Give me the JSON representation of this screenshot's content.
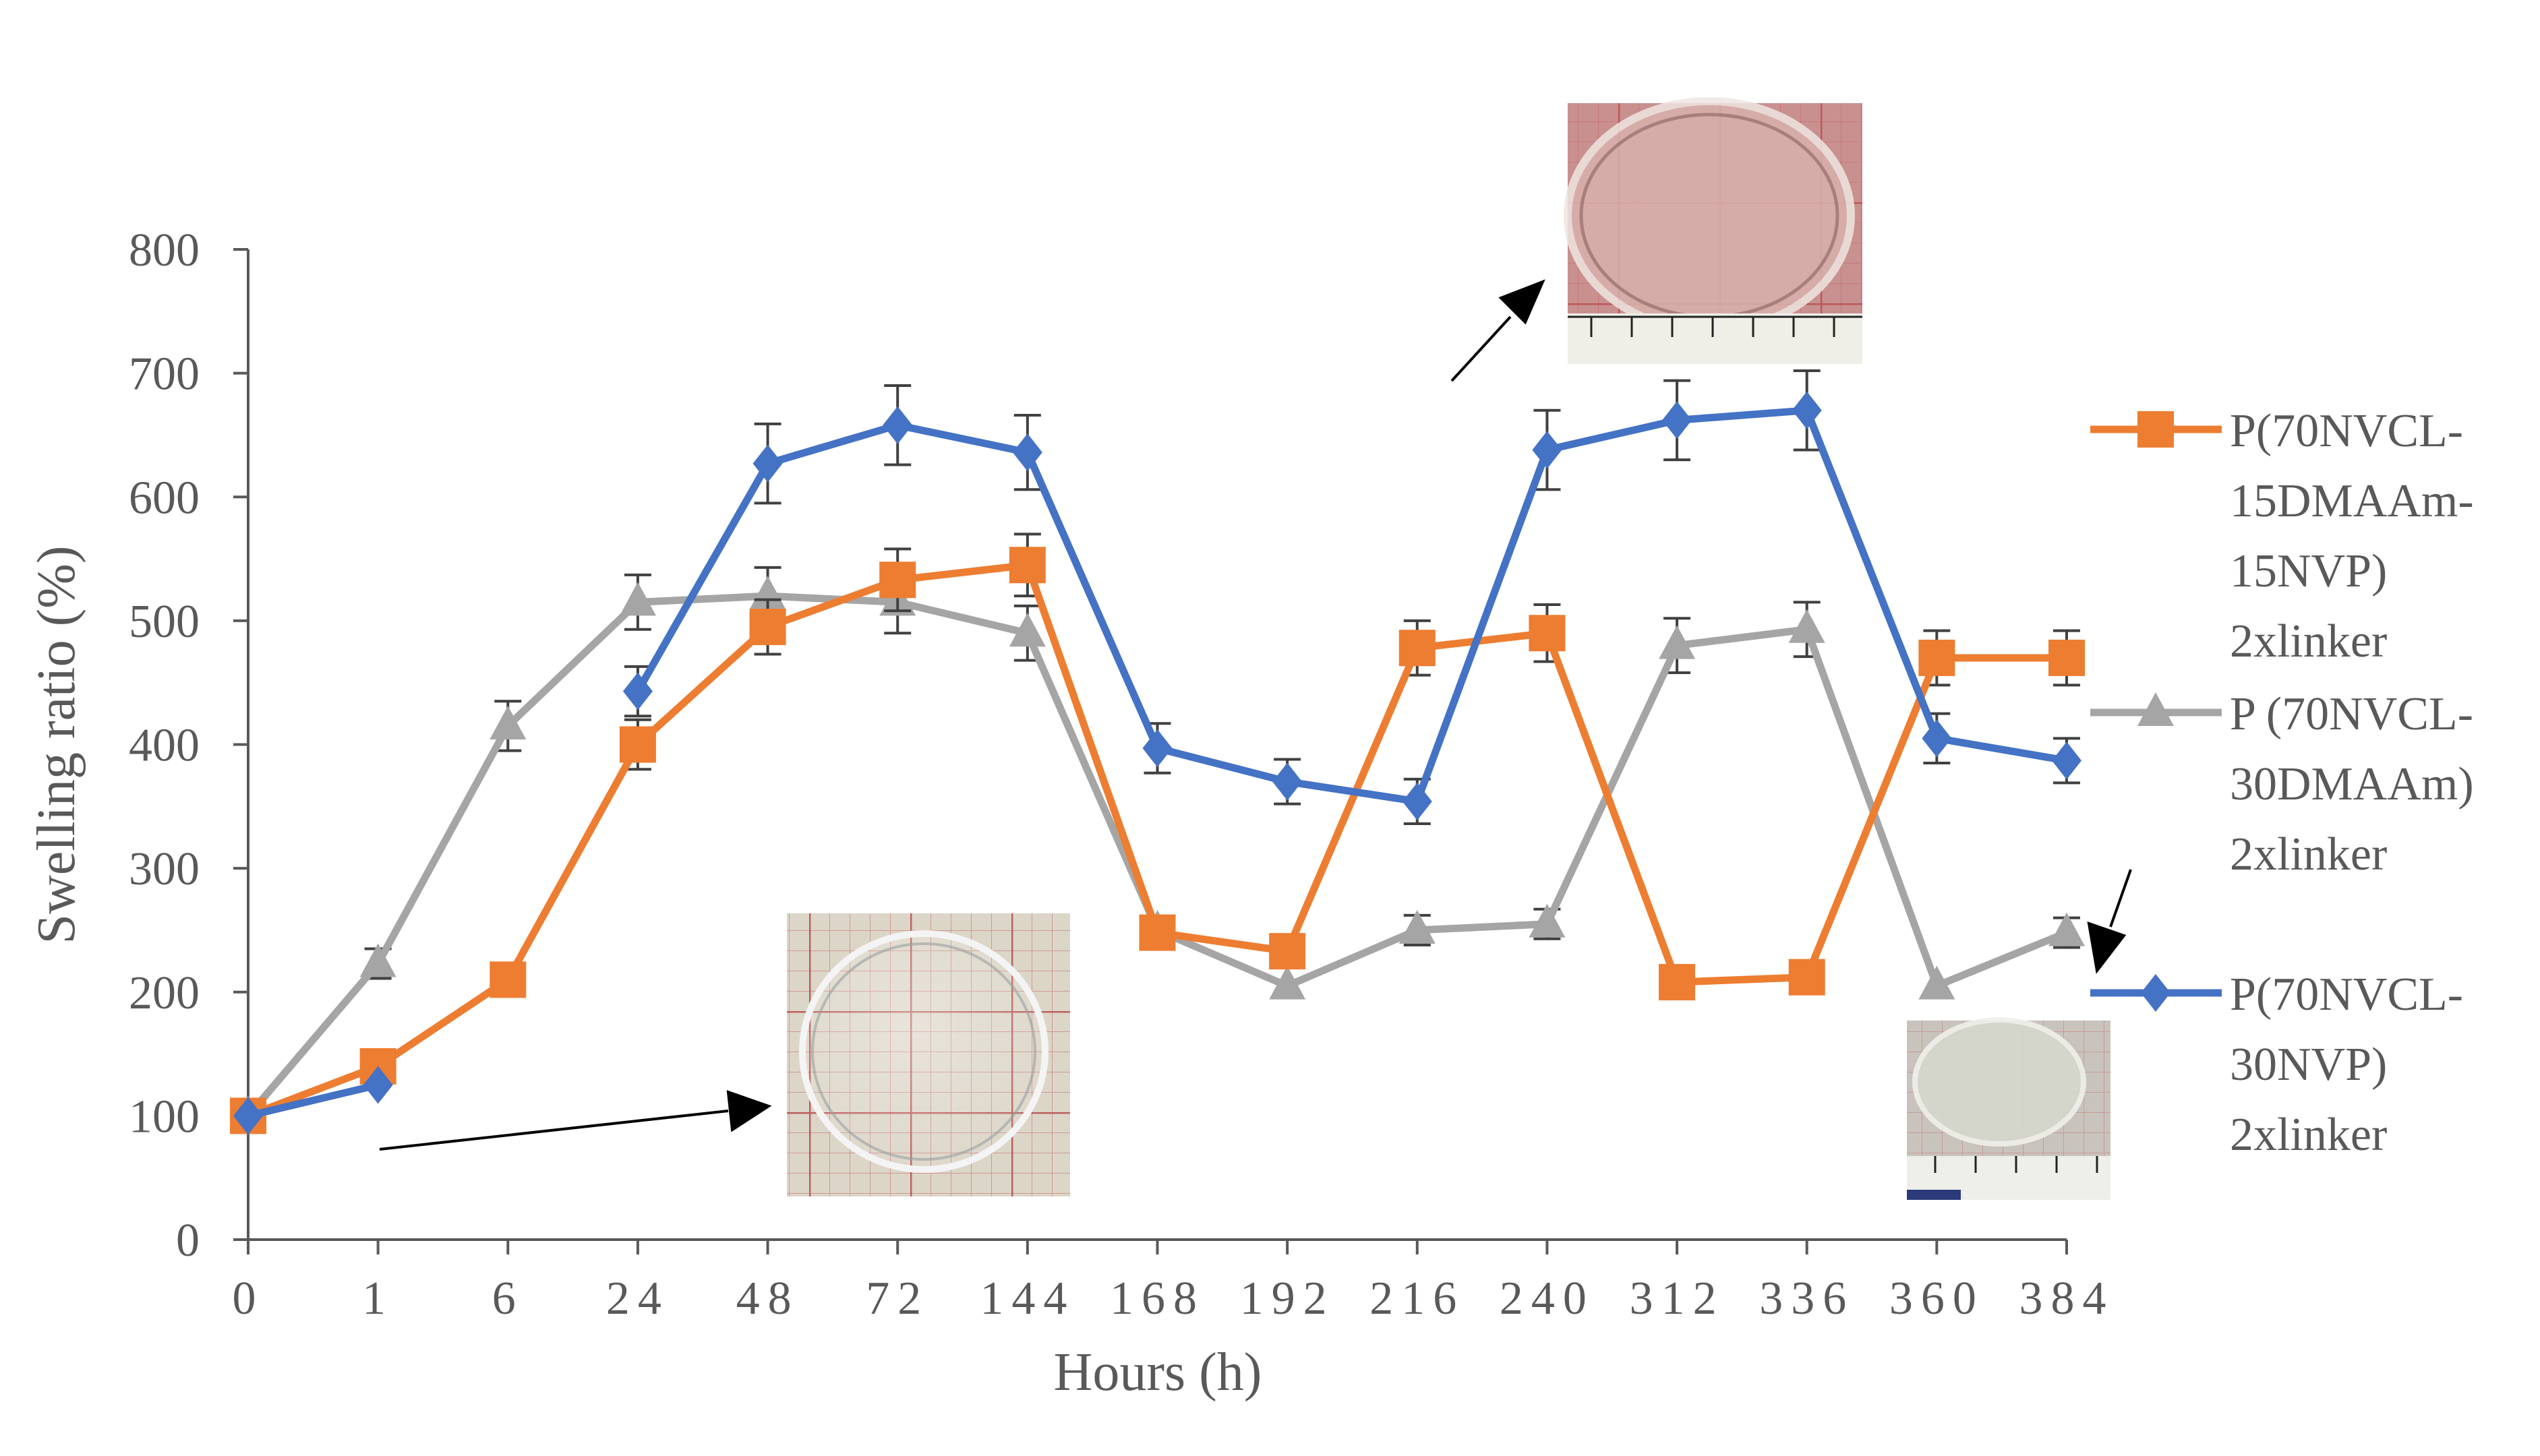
{
  "chart_data": {
    "type": "line",
    "title": "",
    "xlabel": "Hours (h)",
    "ylabel": "Swelling ratio (%)",
    "ylim": [
      0,
      800
    ],
    "yticks": [
      0,
      100,
      200,
      300,
      400,
      500,
      600,
      700,
      800
    ],
    "categories": [
      "0",
      "1",
      "6",
      "24",
      "48",
      "72",
      "144",
      "168",
      "192",
      "216",
      "240",
      "312",
      "336",
      "360",
      "384"
    ],
    "grid": false,
    "legend_position": "right",
    "series": [
      {
        "name": "P(70NVCL-15DMAAm-15NVP) 2xlinker",
        "legend_lines": [
          "P(70NVCL-",
          "15DMAAm-",
          "15NVP)",
          "2xlinker"
        ],
        "color": "#ED7D31",
        "marker": "square",
        "values": [
          100,
          140,
          210,
          400,
          495,
          533,
          545,
          248,
          233,
          478,
          490,
          208,
          212,
          470,
          470
        ],
        "errors": [
          0,
          0,
          0,
          20,
          22,
          25,
          25,
          0,
          0,
          22,
          23,
          0,
          0,
          22,
          22
        ]
      },
      {
        "name": "P (70NVCL-30DMAAm) 2xlinker",
        "legend_lines": [
          "P (70NVCL-",
          "30DMAAm)",
          "2xlinker"
        ],
        "color": "#A5A5A5",
        "marker": "triangle",
        "values": [
          100,
          223,
          415,
          515,
          520,
          515,
          490,
          250,
          205,
          250,
          255,
          480,
          493,
          205,
          248
        ],
        "errors": [
          0,
          12,
          20,
          22,
          23,
          25,
          22,
          0,
          0,
          12,
          12,
          22,
          22,
          0,
          12
        ]
      },
      {
        "name": "P(70NVCL-30NVP) 2xlinker",
        "legend_lines": [
          "P(70NVCL-",
          "30NVP)",
          "2xlinker"
        ],
        "color": "#4472C4",
        "marker": "diamond",
        "values": [
          100,
          125,
          null,
          443,
          627,
          658,
          636,
          397,
          370,
          354,
          638,
          662,
          670,
          405,
          387
        ],
        "errors": [
          0,
          0,
          0,
          20,
          32,
          32,
          30,
          20,
          18,
          18,
          32,
          32,
          32,
          20,
          18
        ]
      }
    ]
  }
}
